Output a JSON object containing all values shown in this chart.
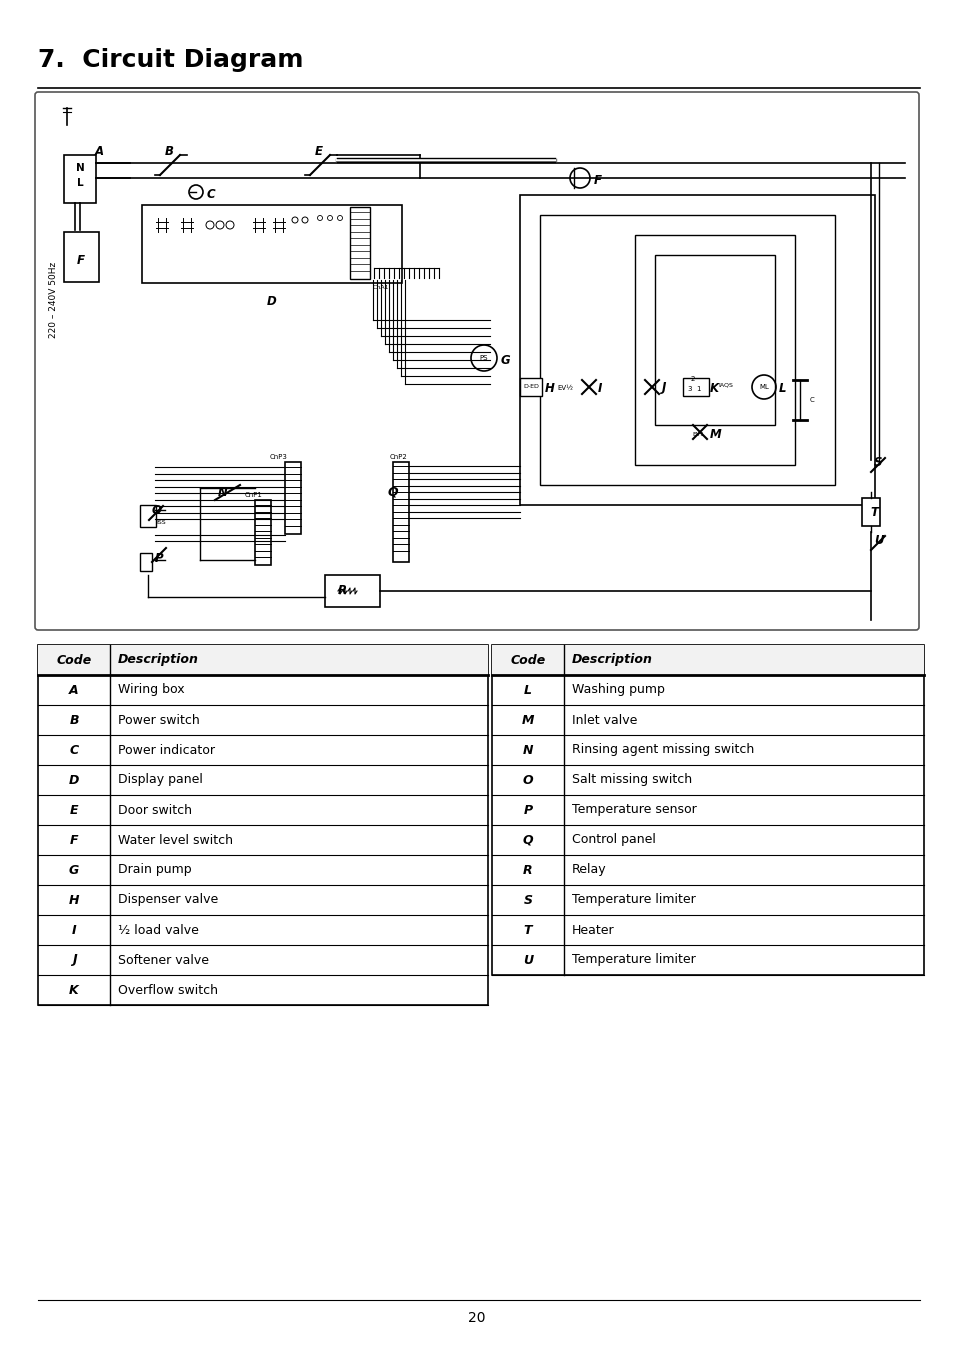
{
  "title": "7.  Circuit Diagram",
  "page_number": "20",
  "background_color": "#ffffff",
  "table_left": {
    "headers": [
      "Code",
      "Description"
    ],
    "rows": [
      [
        "A",
        "Wiring box"
      ],
      [
        "B",
        "Power switch"
      ],
      [
        "C",
        "Power indicator"
      ],
      [
        "D",
        "Display panel"
      ],
      [
        "E",
        "Door switch"
      ],
      [
        "F",
        "Water level switch"
      ],
      [
        "G",
        "Drain pump"
      ],
      [
        "H",
        "Dispenser valve"
      ],
      [
        "I",
        "½ load valve"
      ],
      [
        "J",
        "Softener valve"
      ],
      [
        "K",
        "Overflow switch"
      ]
    ]
  },
  "table_right": {
    "headers": [
      "Code",
      "Description"
    ],
    "rows": [
      [
        "L",
        "Washing pump"
      ],
      [
        "M",
        "Inlet valve"
      ],
      [
        "N",
        "Rinsing agent missing switch"
      ],
      [
        "O",
        "Salt missing switch"
      ],
      [
        "P",
        "Temperature sensor"
      ],
      [
        "Q",
        "Control panel"
      ],
      [
        "R",
        "Relay"
      ],
      [
        "S",
        "Temperature limiter"
      ],
      [
        "T",
        "Heater"
      ],
      [
        "U",
        "Temperature limiter"
      ]
    ]
  }
}
